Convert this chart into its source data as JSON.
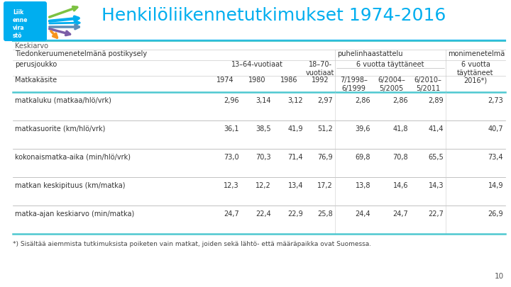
{
  "title": "Henkilöliikennetutkimukset 1974-2016",
  "title_color": "#00AEEF",
  "bg_color": "#FFFFFF",
  "teal_color": "#00AEEF",
  "table_teal": "#4DC8D0",
  "dark_text": "#333333",
  "gray_text": "#555555",
  "line_gray": "#AAAAAA",
  "line_light": "#CCCCCC",
  "row1_label": "Keskiarvo",
  "row2_label": "Tiedonkeruumenetelmänä postikysely",
  "row2b_label": "puhelinhaastattelu",
  "row2c_label": "monimenetelmä",
  "row3_label": "perusjoukko",
  "row3b_label": "13–64-vuotiaat",
  "row3c_label": "18–70-\nvuotiaat",
  "row3d_label": "6 vuotta täyttäneet",
  "row3e_label": "6 vuotta\ntäyttäneet",
  "row4_label": "Matkakäsite",
  "row4_cols": [
    "1974",
    "1980",
    "1986",
    "1992",
    "7/1998–\n6/1999",
    "6/2004–\n5/2005",
    "6/2010–\n5/2011",
    "2016*)"
  ],
  "data_rows": [
    {
      "label": "matkaluku (matkaa/hlö/vrk)",
      "values": [
        "2,96",
        "3,14",
        "3,12",
        "2,97",
        "2,86",
        "2,86",
        "2,89",
        "2,73"
      ]
    },
    {
      "label": "matkasuorite (km/hlö/vrk)",
      "values": [
        "36,1",
        "38,5",
        "41,9",
        "51,2",
        "39,6",
        "41,8",
        "41,4",
        "40,7"
      ]
    },
    {
      "label": "kokonaismatka-aika (min/hlö/vrk)",
      "values": [
        "73,0",
        "70,3",
        "71,4",
        "76,9",
        "69,8",
        "70,8",
        "65,5",
        "73,4"
      ]
    },
    {
      "label": "matkan keskipituus (km/matka)",
      "values": [
        "12,3",
        "12,2",
        "13,4",
        "17,2",
        "13,8",
        "14,6",
        "14,3",
        "14,9"
      ]
    },
    {
      "label": "matka-ajan keskiarvo (min/matka)",
      "values": [
        "24,7",
        "22,4",
        "22,9",
        "25,8",
        "24,4",
        "24,7",
        "22,7",
        "26,9"
      ]
    }
  ],
  "footnote": "*) Sisältää aiemmista tutkimuksista poiketen vain matkat, joiden sekä lähtö- että määräpaikka ovat Suomessa.",
  "logo_box_color": "#00AEEF",
  "logo_text": "Liik\nenne\nvira\nstö",
  "page_number": "10"
}
